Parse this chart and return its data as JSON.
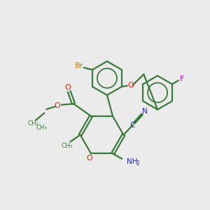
{
  "bg_color": "#ebebeb",
  "bond_color": "#3a7a3a",
  "bond_width": 1.6,
  "heteroatom_colors": {
    "O": "#dd2200",
    "N": "#2222bb",
    "Br": "#cc7700",
    "F": "#cc00cc",
    "C_triple": "#2222bb"
  },
  "xlim": [
    0,
    10
  ],
  "ylim": [
    0,
    10
  ]
}
